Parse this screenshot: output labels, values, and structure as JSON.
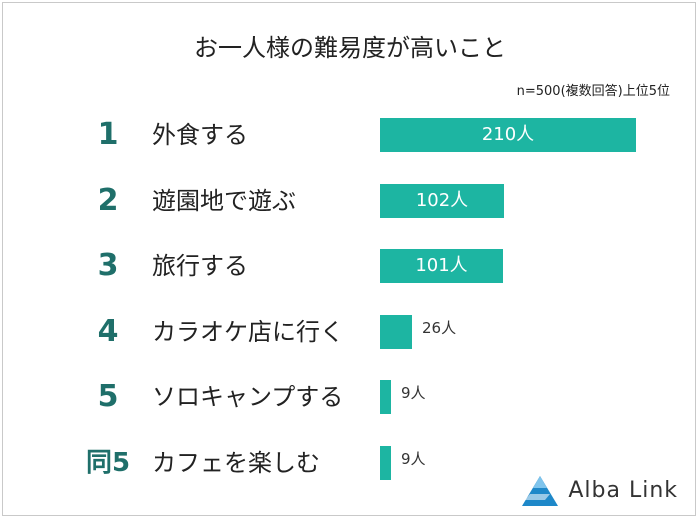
{
  "chart_data": {
    "type": "bar",
    "title": "お一人様の難易度が高いこと",
    "note": "n=500(複数回答)上位5位",
    "xlim": [
      0,
      210
    ],
    "items": [
      {
        "rank": "1",
        "label": "外食する",
        "value": 210,
        "value_label": "210人"
      },
      {
        "rank": "2",
        "label": "遊園地で遊ぶ",
        "value": 102,
        "value_label": "102人"
      },
      {
        "rank": "3",
        "label": "旅行する",
        "value": 101,
        "value_label": "101人"
      },
      {
        "rank": "4",
        "label": "カラオケ店に行く",
        "value": 26,
        "value_label": "26人"
      },
      {
        "rank": "5",
        "label": "ソロキャンプする",
        "value": 9,
        "value_label": "9人"
      },
      {
        "rank": "同5",
        "label": "カフェを楽しむ",
        "value": 9,
        "value_label": "9人"
      }
    ],
    "bar_color": "#1db5a2",
    "rank_color": "#1f6f6a"
  },
  "brand": {
    "name": "Alba Link",
    "logo_icon": "triangle-logo-icon",
    "color": "#1e88c9"
  }
}
